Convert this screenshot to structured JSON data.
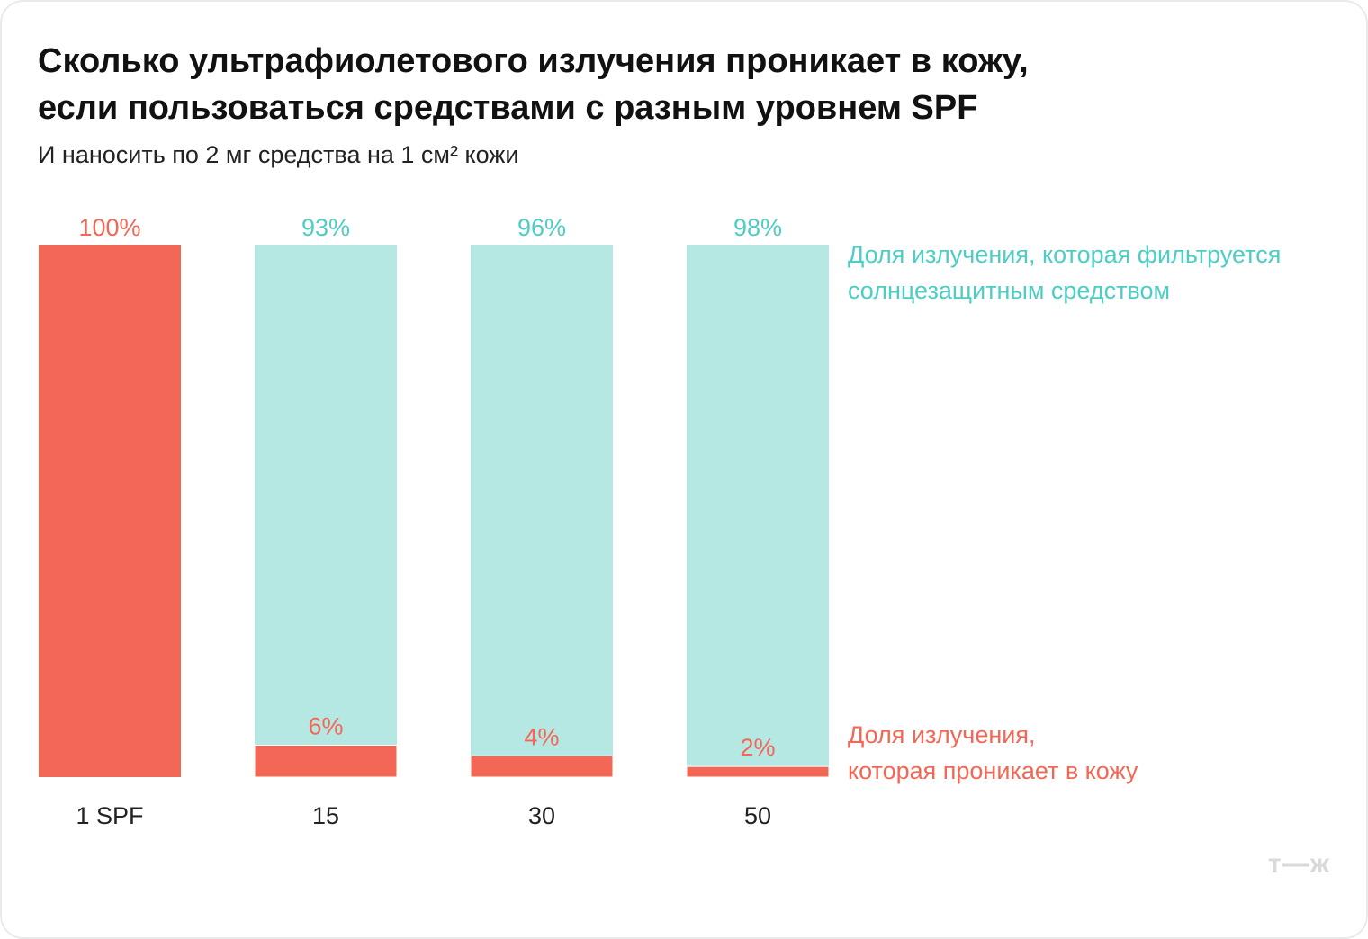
{
  "title_line1": "Сколько ультрафиолетового излучения проникает в кожу,",
  "title_line2": "если пользоваться средствами с разным уровнем SPF",
  "subtitle": "И наносить по 2 мг средства на 1 см² кожи",
  "logo": "т—ж",
  "colors": {
    "filtered": "#b5e7e3",
    "filtered_text": "#4ecdc4",
    "penetrating": "#f26755"
  },
  "chart_data": {
    "type": "bar",
    "stacked": true,
    "title": "Сколько ультрафиолетового излучения проникает в кожу, если пользоваться средствами с разным уровнем SPF",
    "subtitle": "И наносить по 2 мг средства на 1 см² кожи",
    "categories": [
      "1 SPF",
      "15",
      "30",
      "50"
    ],
    "series": [
      {
        "name": "Доля излучения, которая проникает в кожу",
        "values": [
          100,
          6,
          4,
          2
        ],
        "labels": [
          "100%",
          "6%",
          "4%",
          "2%"
        ]
      },
      {
        "name": "Доля излучения, которая фильтруется солнцезащитным средством",
        "values": [
          0,
          93,
          96,
          98
        ],
        "labels": [
          "",
          "93%",
          "96%",
          "98%"
        ]
      }
    ],
    "ylim": [
      0,
      100
    ],
    "legend": {
      "filtered": [
        "Доля излучения, которая фильтруется",
        "солнцезащитным средством"
      ],
      "penetrating": [
        "Доля излучения,",
        "которая проникает в кожу"
      ]
    },
    "legend_position": "right",
    "grid": false
  }
}
